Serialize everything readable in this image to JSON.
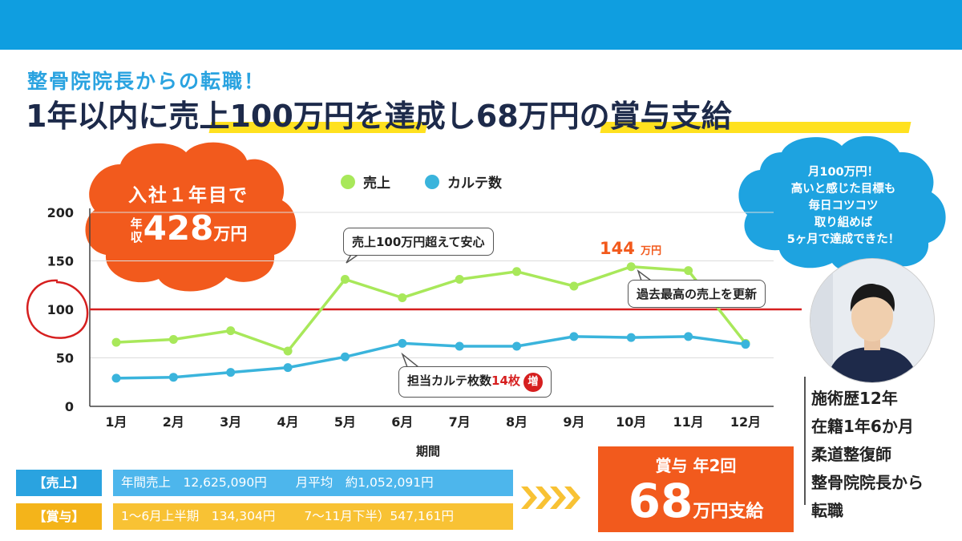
{
  "header": {
    "subtitle": "整骨院院長からの転職！",
    "headline": "1年以内に売上100万円を達成し68万円の賞与支給"
  },
  "salary_badge": {
    "line1": "入社１年目で",
    "prefix": "年収",
    "amount": "428",
    "unit": "万円"
  },
  "callouts": {
    "sales_over": "売上100万円超えて安心",
    "record": "過去最高の売上を更新",
    "karte_prefix": "担当カルテ枚数",
    "karte_value": "14枚",
    "karte_badge": "増",
    "peak_value": "144",
    "peak_unit": "万円"
  },
  "cloud": {
    "lines": [
      "月100万円！",
      "高いと感じた目標も",
      "毎日コツコツ",
      "取り組めば",
      "5ヶ月で達成できた！"
    ]
  },
  "profile": {
    "lines": [
      "施術歴12年",
      "在籍1年6か月",
      "柔道整復師",
      "整骨院院長から",
      "転職"
    ]
  },
  "summary": {
    "sales_label": "【売上】",
    "sales_annual": "年間売上　12,625,090円",
    "sales_monthly": "月平均　約1,052,091円",
    "bonus_label": "【賞与】",
    "bonus_first": "1～6月上半期　134,304円",
    "bonus_second": "7～11月下半）547,161円"
  },
  "bonus_box": {
    "line1": "賞与 年2回",
    "amount": "68",
    "unit": "万円支給"
  },
  "colors": {
    "sales": "#a8e85a",
    "karte": "#3ab4dc",
    "reference": "#d61f1f",
    "accent": "#f25a1d",
    "brand": "#0f9ee0"
  },
  "chart_data": {
    "type": "line",
    "xlabel": "期間",
    "ylabel": "",
    "categories": [
      "1月",
      "2月",
      "3月",
      "4月",
      "5月",
      "6月",
      "7月",
      "8月",
      "9月",
      "10月",
      "11月",
      "12月"
    ],
    "series": [
      {
        "name": "売上",
        "values": [
          66,
          69,
          78,
          57,
          131,
          112,
          131,
          139,
          124,
          144,
          140,
          65
        ]
      },
      {
        "name": "カルテ数",
        "values": [
          29,
          30,
          35,
          40,
          51,
          65,
          62,
          62,
          72,
          71,
          72,
          64
        ]
      }
    ],
    "ylim": [
      0,
      200
    ],
    "yticks": [
      0,
      50,
      100,
      150,
      200
    ],
    "reference_line": 100,
    "grid": true,
    "legend": "top"
  }
}
